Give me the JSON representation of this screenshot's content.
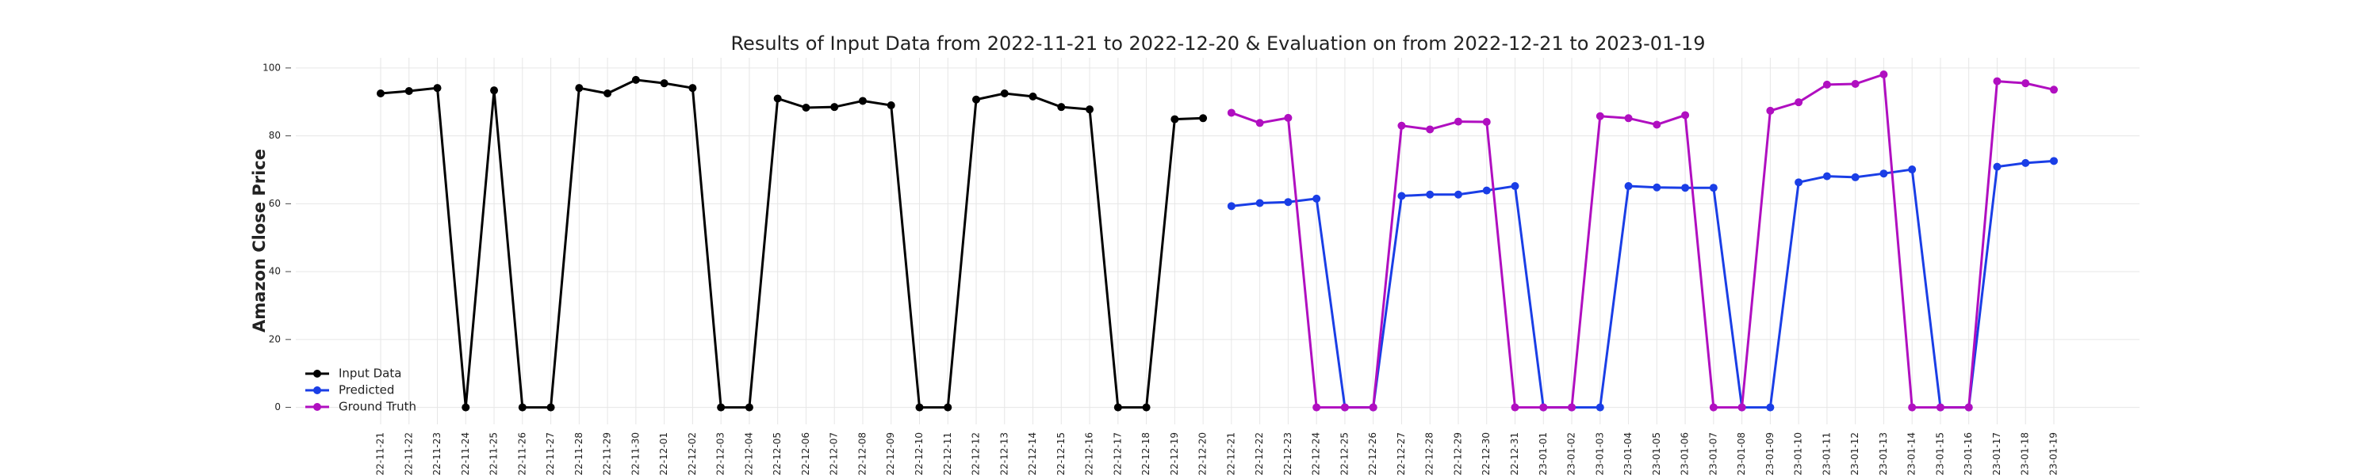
{
  "chart_data": {
    "type": "line",
    "title": "Results of Input Data from 2022-11-21 to 2022-12-20 & Evaluation on from 2022-12-21 to 2023-01-19",
    "y_label": "Amazon Close Price",
    "categories": [
      "2022-11-21",
      "2022-11-22",
      "2022-11-23",
      "2022-11-24",
      "2022-11-25",
      "2022-11-26",
      "2022-11-27",
      "2022-11-28",
      "2022-11-29",
      "2022-11-30",
      "2022-12-01",
      "2022-12-02",
      "2022-12-03",
      "2022-12-04",
      "2022-12-05",
      "2022-12-06",
      "2022-12-07",
      "2022-12-08",
      "2022-12-09",
      "2022-12-10",
      "2022-12-11",
      "2022-12-12",
      "2022-12-13",
      "2022-12-14",
      "2022-12-15",
      "2022-12-16",
      "2022-12-17",
      "2022-12-18",
      "2022-12-19",
      "2022-12-20",
      "2022-12-21",
      "2022-12-22",
      "2022-12-23",
      "2022-12-24",
      "2022-12-25",
      "2022-12-26",
      "2022-12-27",
      "2022-12-28",
      "2022-12-29",
      "2022-12-30",
      "2022-12-31",
      "2023-01-01",
      "2023-01-02",
      "2023-01-03",
      "2023-01-04",
      "2023-01-05",
      "2023-01-06",
      "2023-01-07",
      "2023-01-08",
      "2023-01-09",
      "2023-01-10",
      "2023-01-11",
      "2023-01-12",
      "2023-01-13",
      "2023-01-14",
      "2023-01-15",
      "2023-01-16",
      "2023-01-17",
      "2023-01-18",
      "2023-01-19"
    ],
    "series": [
      {
        "name": "Input Data",
        "color": "#000000",
        "values": [
          92.5,
          93.2,
          94.1,
          0,
          93.4,
          0,
          0,
          94.1,
          92.5,
          96.5,
          95.5,
          94.1,
          0,
          0,
          91.0,
          88.3,
          88.5,
          90.3,
          89.0,
          0,
          0,
          90.7,
          92.5,
          91.6,
          88.5,
          87.8,
          0,
          0,
          84.9,
          85.2,
          null,
          null,
          null,
          null,
          null,
          null,
          null,
          null,
          null,
          null,
          null,
          null,
          null,
          null,
          null,
          null,
          null,
          null,
          null,
          null,
          null,
          null,
          null,
          null,
          null,
          null,
          null,
          null,
          null,
          null
        ]
      },
      {
        "name": "Predicted",
        "color": "#1a3ee6",
        "values": [
          null,
          null,
          null,
          null,
          null,
          null,
          null,
          null,
          null,
          null,
          null,
          null,
          null,
          null,
          null,
          null,
          null,
          null,
          null,
          null,
          null,
          null,
          null,
          null,
          null,
          null,
          null,
          null,
          null,
          null,
          59.3,
          60.2,
          60.5,
          61.5,
          0,
          0,
          62.3,
          62.7,
          62.7,
          63.9,
          65.2,
          0,
          0,
          0,
          65.2,
          64.8,
          64.7,
          64.7,
          0,
          0,
          66.3,
          68.1,
          67.8,
          68.9,
          70.1,
          0,
          0,
          70.9,
          72.0,
          72.6
        ]
      },
      {
        "name": "Ground Truth",
        "color": "#b00fc0",
        "values": [
          null,
          null,
          null,
          null,
          null,
          null,
          null,
          null,
          null,
          null,
          null,
          null,
          null,
          null,
          null,
          null,
          null,
          null,
          null,
          null,
          null,
          null,
          null,
          null,
          null,
          null,
          null,
          null,
          null,
          null,
          86.8,
          83.8,
          85.3,
          0,
          0,
          0,
          83.0,
          81.9,
          84.2,
          84.1,
          0,
          0,
          0,
          85.8,
          85.2,
          83.3,
          86.1,
          0,
          0,
          87.4,
          89.9,
          95.1,
          95.3,
          98.1,
          0,
          0,
          0,
          96.1,
          95.5,
          93.6
        ]
      }
    ],
    "ylim": [
      -5,
      103
    ],
    "yticks": [
      0,
      20,
      40,
      60,
      80,
      100
    ],
    "grid": true,
    "legend": "lower left"
  }
}
